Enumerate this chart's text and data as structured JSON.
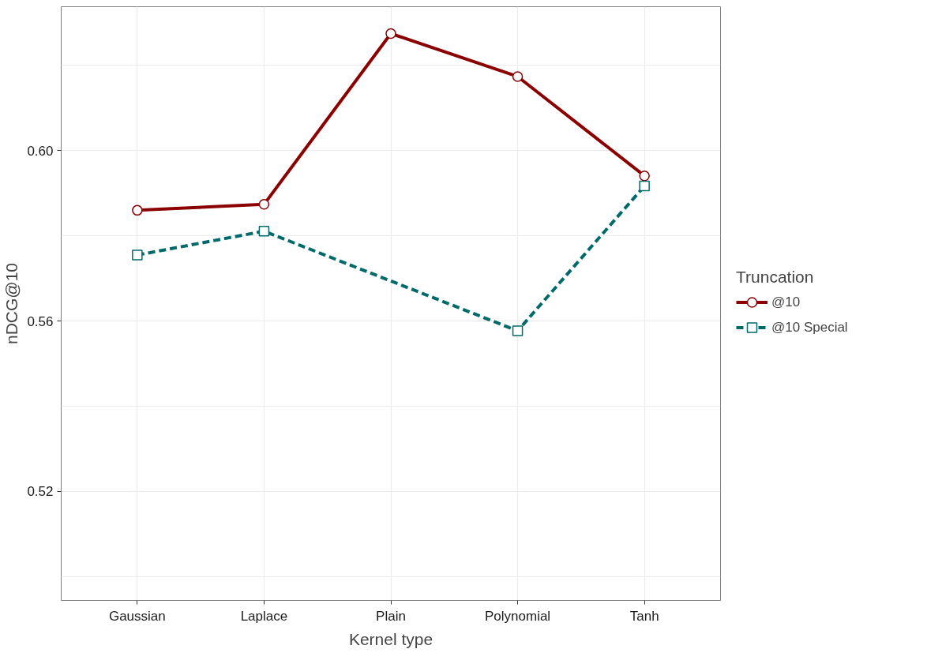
{
  "chart_data": {
    "type": "line",
    "xlabel": "Kernel type",
    "ylabel": "nDCG@10",
    "legend_title": "Truncation",
    "categories": [
      "Gaussian",
      "Laplace",
      "Plain",
      "Polynomial",
      "Tanh"
    ],
    "series": [
      {
        "name": "@10",
        "color": "#8b0000",
        "values": [
          0.586,
          0.5874,
          0.6275,
          0.6174,
          0.5941
        ],
        "marker": "circle",
        "line_style": "solid"
      },
      {
        "name": "@10 Special",
        "color": "#006a6a",
        "values": [
          0.5755,
          0.5811,
          null,
          0.5577,
          0.5917
        ],
        "marker": "square",
        "line_style": "dashed"
      }
    ],
    "ylim": [
      0.4944,
      0.6338
    ],
    "yticks": [
      {
        "value": 0.5,
        "label": null
      },
      {
        "value": 0.52,
        "label": "0.52"
      },
      {
        "value": 0.54,
        "label": null
      },
      {
        "value": 0.56,
        "label": "0.56"
      },
      {
        "value": 0.58,
        "label": null
      },
      {
        "value": 0.6,
        "label": "0.60"
      },
      {
        "value": 0.62,
        "label": null
      }
    ],
    "grid": true,
    "legend": "right"
  }
}
